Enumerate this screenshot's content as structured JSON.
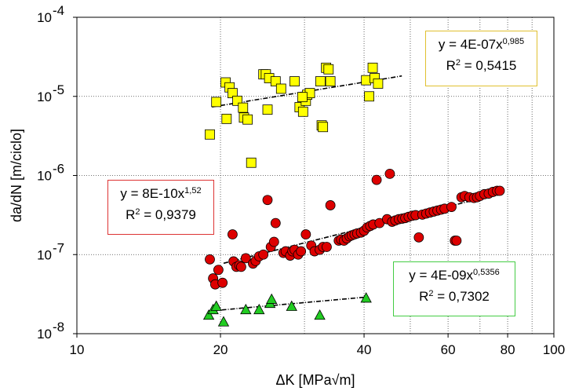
{
  "chart_data": {
    "type": "scatter",
    "title": "",
    "xlabel": "ΔK [MPa√m]",
    "ylabel": "da/dN [m/ciclo]",
    "x_scale": "log",
    "y_scale": "log",
    "xlim": [
      10,
      100
    ],
    "ylim": [
      1e-08,
      0.0001
    ],
    "x_ticks": [
      10,
      20,
      40,
      60,
      80,
      100
    ],
    "y_tick_labels": [
      {
        "value": 1e-08,
        "base": "10",
        "exp": "-8"
      },
      {
        "value": 1e-07,
        "base": "10",
        "exp": "-7"
      },
      {
        "value": 1e-06,
        "base": "10",
        "exp": "-6"
      },
      {
        "value": 1e-05,
        "base": "10",
        "exp": "-5"
      },
      {
        "value": 0.0001,
        "base": "10",
        "exp": "-4"
      }
    ],
    "grid": true,
    "series": [
      {
        "marker": "square",
        "color": "#ffff00",
        "trend": {
          "a": 4e-07,
          "b": 0.985,
          "x_range": [
            19.2,
            48
          ]
        },
        "equation": {
          "y": "y = 4E-07x",
          "exp": "0,985",
          "r2": "R",
          "r2_exp": "2",
          "r2_value": " = 0,5415"
        },
        "legend_border": "#e0c030",
        "points": [
          [
            19,
            3.3e-06
          ],
          [
            19.6,
            8.5e-06
          ],
          [
            20.5,
            1.5e-05
          ],
          [
            20.9,
            1.3e-05
          ],
          [
            21.2,
            1.1e-05
          ],
          [
            21.7,
            8.8e-06
          ],
          [
            20.6,
            5.2e-06
          ],
          [
            22.3,
            7.2e-06
          ],
          [
            22.4,
            5.4e-06
          ],
          [
            22.8,
            5.1e-06
          ],
          [
            23.2,
            1.45e-06
          ],
          [
            24.6,
            1.9e-05
          ],
          [
            24.9,
            1.9e-05
          ],
          [
            25.3,
            1.7e-05
          ],
          [
            26.1,
            1.55e-05
          ],
          [
            26.8,
            1.25e-05
          ],
          [
            25.1,
            6.8e-06
          ],
          [
            28.6,
            1.55e-05
          ],
          [
            29.3,
            7.3e-06
          ],
          [
            29.8,
            6.4e-06
          ],
          [
            30.2,
            8.8e-06
          ],
          [
            30.4,
            1.05e-05
          ],
          [
            30.8,
            1.1e-05
          ],
          [
            29.7,
            9.8e-06
          ],
          [
            32.6,
            4.3e-06
          ],
          [
            32.8,
            4.1e-06
          ],
          [
            32.4,
            1.55e-05
          ],
          [
            33.3,
            2.3e-05
          ],
          [
            33.7,
            2.2e-05
          ],
          [
            34.0,
            1.55e-05
          ],
          [
            40.4,
            1.6e-05
          ],
          [
            41.7,
            2.3e-05
          ],
          [
            42.1,
            1.7e-05
          ],
          [
            42.8,
            1.45e-05
          ],
          [
            41.0,
            1e-05
          ]
        ]
      },
      {
        "marker": "circle",
        "color": "#dd0000",
        "trend": {
          "a": 8e-10,
          "b": 1.52,
          "x_range": [
            20.3,
            77
          ]
        },
        "equation": {
          "y": "y = 8E-10x",
          "exp": "1,52",
          "r2": "R",
          "r2_exp": "2",
          "r2_value": " = 0,9379"
        },
        "legend_border": "#dd3333",
        "points": [
          [
            19.0,
            8.7e-08
          ],
          [
            19.3,
            5e-08
          ],
          [
            19.5,
            4.2e-08
          ],
          [
            19.8,
            6.4e-08
          ],
          [
            20.2,
            4.4e-08
          ],
          [
            21.2,
            1.8e-07
          ],
          [
            21.3,
            8.2e-08
          ],
          [
            21.6,
            7e-08
          ],
          [
            21.9,
            7.3e-08
          ],
          [
            22.1,
            7e-08
          ],
          [
            22.6,
            9e-08
          ],
          [
            23.4,
            7.7e-08
          ],
          [
            23.7,
            8.3e-08
          ],
          [
            24.1,
            9.5e-08
          ],
          [
            24.6,
            1e-07
          ],
          [
            25.1,
            4.9e-07
          ],
          [
            25.5,
            1.25e-07
          ],
          [
            25.9,
            1.45e-07
          ],
          [
            26.1,
            2.5e-07
          ],
          [
            27.1,
            1.05e-07
          ],
          [
            27.4,
            1.1e-07
          ],
          [
            28.0,
            9.7e-08
          ],
          [
            28.3,
            1.1e-07
          ],
          [
            28.6,
            1.15e-07
          ],
          [
            29.1,
            1e-07
          ],
          [
            29.5,
            1.1e-07
          ],
          [
            30.2,
            1.8e-07
          ],
          [
            31.0,
            1.3e-07
          ],
          [
            31.5,
            1.1e-07
          ],
          [
            32.3,
            1.15e-07
          ],
          [
            32.8,
            1.25e-07
          ],
          [
            33.4,
            1.25e-07
          ],
          [
            34.0,
            4.2e-07
          ],
          [
            35.4,
            1.5e-07
          ],
          [
            35.8,
            1.55e-07
          ],
          [
            36.3,
            1.5e-07
          ],
          [
            36.8,
            1.6e-07
          ],
          [
            37.3,
            1.7e-07
          ],
          [
            37.7,
            1.75e-07
          ],
          [
            38.2,
            1.8e-07
          ],
          [
            38.7,
            1.85e-07
          ],
          [
            39.4,
            1.9e-07
          ],
          [
            40.0,
            2e-07
          ],
          [
            40.6,
            2.2e-07
          ],
          [
            41.2,
            2.3e-07
          ],
          [
            41.8,
            2.4e-07
          ],
          [
            42.5,
            8.8e-07
          ],
          [
            43.1,
            2.5e-07
          ],
          [
            44.7,
            2.8e-07
          ],
          [
            45.3,
            1.05e-06
          ],
          [
            45.8,
            2.6e-07
          ],
          [
            46.5,
            2.7e-07
          ],
          [
            47.3,
            2.8e-07
          ],
          [
            48.1,
            2.85e-07
          ],
          [
            48.8,
            2.9e-07
          ],
          [
            49.6,
            3e-07
          ],
          [
            50.5,
            3.1e-07
          ],
          [
            51.3,
            3.15e-07
          ],
          [
            52.1,
            1.65e-07
          ],
          [
            53.0,
            3.2e-07
          ],
          [
            54.0,
            3.3e-07
          ],
          [
            55.0,
            3.4e-07
          ],
          [
            56.0,
            3.5e-07
          ],
          [
            57.0,
            3.6e-07
          ],
          [
            58.0,
            3.7e-07
          ],
          [
            59.0,
            3.8e-07
          ],
          [
            61.0,
            4e-07
          ],
          [
            62.0,
            1.5e-07
          ],
          [
            62.5,
            1.5e-07
          ],
          [
            64.0,
            5.3e-07
          ],
          [
            65.0,
            5.5e-07
          ],
          [
            66.5,
            5.3e-07
          ],
          [
            68.0,
            5.2e-07
          ],
          [
            69.0,
            5.3e-07
          ],
          [
            70.0,
            5.5e-07
          ],
          [
            71.5,
            5.8e-07
          ],
          [
            73.0,
            5.9e-07
          ],
          [
            74.5,
            6.2e-07
          ],
          [
            76.0,
            6.4e-07
          ],
          [
            77.0,
            6.4e-07
          ]
        ]
      },
      {
        "marker": "triangle",
        "color": "#22cc22",
        "trend": {
          "a": 4e-09,
          "b": 0.5356,
          "x_range": [
            19.3,
            40.5
          ]
        },
        "equation": {
          "y": "y = 4E-09x",
          "exp": "0,5356",
          "r2": "R",
          "r2_exp": "2",
          "r2_value": " = 0,7302"
        },
        "legend_border": "#44cc44",
        "points": [
          [
            18.9,
            1.7e-08
          ],
          [
            19.3,
            2e-08
          ],
          [
            19.6,
            2.2e-08
          ],
          [
            20.3,
            1.4e-08
          ],
          [
            22.6,
            2e-08
          ],
          [
            24.1,
            2e-08
          ],
          [
            25.4,
            2.4e-08
          ],
          [
            25.6,
            2.7e-08
          ],
          [
            28.2,
            2.2e-08
          ],
          [
            32.3,
            1.7e-08
          ],
          [
            40.4,
            2.8e-08
          ]
        ]
      }
    ]
  }
}
